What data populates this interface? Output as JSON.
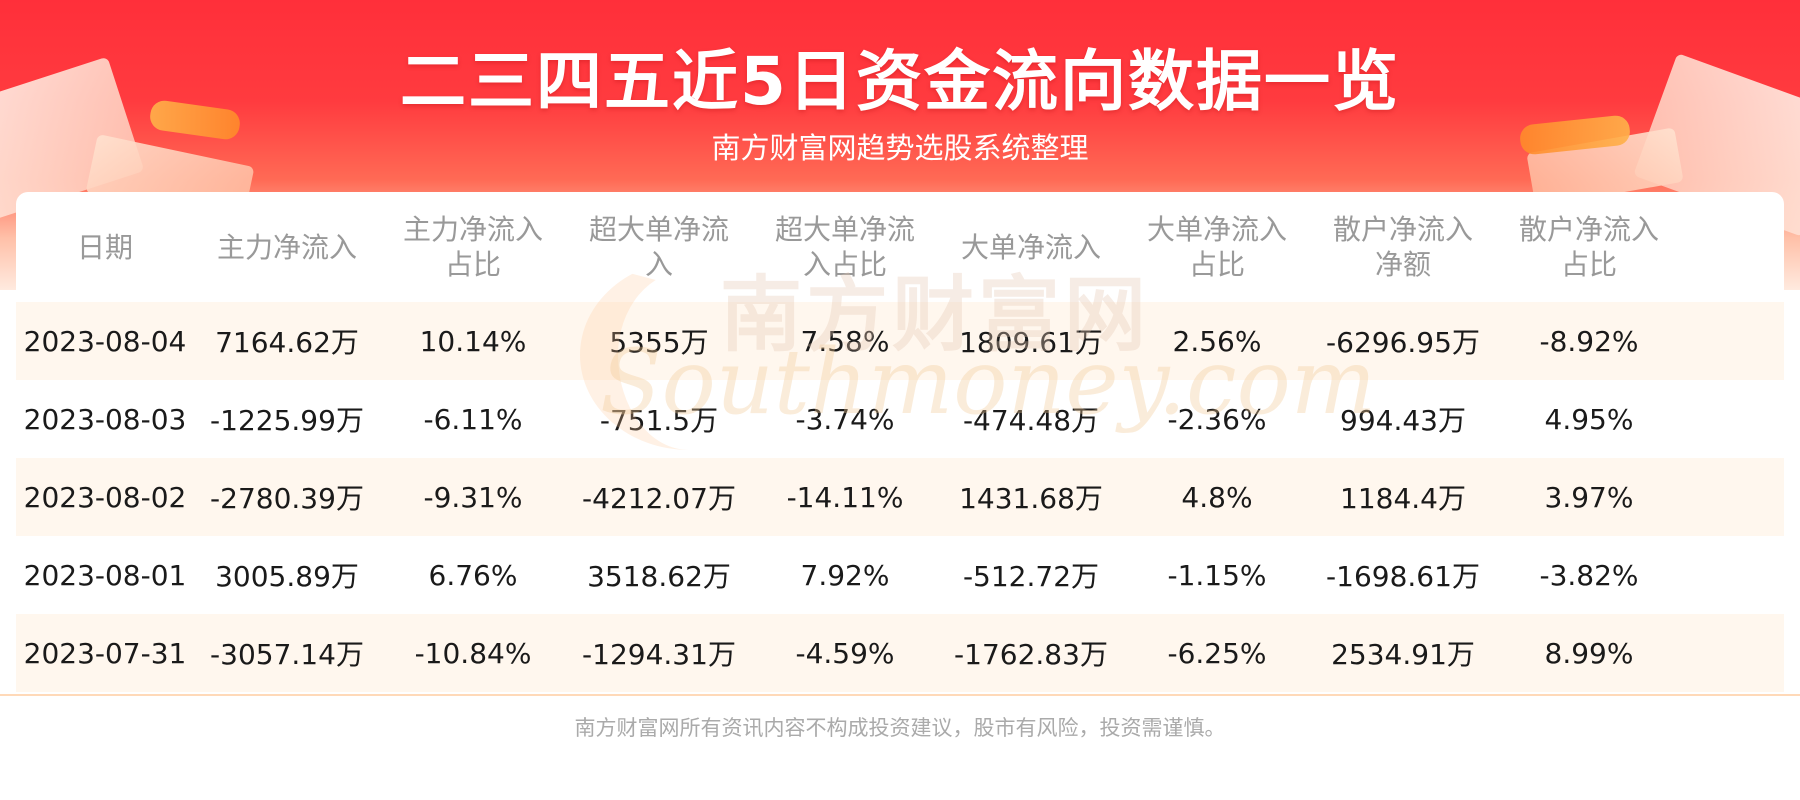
{
  "header": {
    "title": "二三四五近5日资金流向数据一览",
    "subtitle": "南方财富网趋势选股系统整理"
  },
  "watermark": {
    "cn": "南方财富网",
    "en": "Southmoney.com"
  },
  "table": {
    "columns": [
      "日期",
      "主力净流入",
      "主力净流入\n占比",
      "超大单净流\n入",
      "超大单净流\n入占比",
      "大单净流入",
      "大单净流入\n占比",
      "散户净流入\n净额",
      "散户净流入\n占比"
    ],
    "rows": [
      [
        "2023-08-04",
        "7164.62万",
        "10.14%",
        "5355万",
        "7.58%",
        "1809.61万",
        "2.56%",
        "-6296.95万",
        "-8.92%"
      ],
      [
        "2023-08-03",
        "-1225.99万",
        "-6.11%",
        "-751.5万",
        "-3.74%",
        "-474.48万",
        "-2.36%",
        "994.43万",
        "4.95%"
      ],
      [
        "2023-08-02",
        "-2780.39万",
        "-9.31%",
        "-4212.07万",
        "-14.11%",
        "1431.68万",
        "4.8%",
        "1184.4万",
        "3.97%"
      ],
      [
        "2023-08-01",
        "3005.89万",
        "6.76%",
        "3518.62万",
        "7.92%",
        "-512.72万",
        "-1.15%",
        "-1698.61万",
        "-3.82%"
      ],
      [
        "2023-07-31",
        "-3057.14万",
        "-10.84%",
        "-1294.31万",
        "-4.59%",
        "-1762.83万",
        "-6.25%",
        "2534.91万",
        "8.99%"
      ]
    ]
  },
  "footer": {
    "disclaimer": "南方财富网所有资讯内容不构成投资建议，股市有风险，投资需谨慎。"
  },
  "colors": {
    "banner_red": "#ff2f3a",
    "stripe": "#fff7ee",
    "header_text": "#999999",
    "cell_text": "#1a1a1a"
  }
}
